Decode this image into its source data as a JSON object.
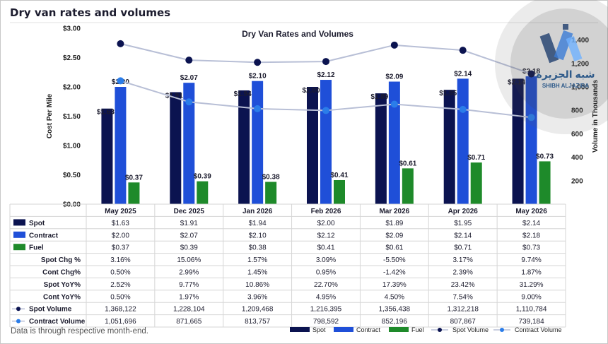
{
  "page": {
    "title": "Dry van rates and volumes",
    "footnote": "Data is through respective month-end."
  },
  "watermark": {
    "arabic": "شبه الجزيرة",
    "latin": "SHIBH ALJAZIRA"
  },
  "colors": {
    "spot": "#0b1350",
    "contract": "#1f4fd8",
    "fuel": "#1e8a2a",
    "spot_volume": "#0b1350",
    "contract_volume": "#2b7de9",
    "line": "#b8bfd6"
  },
  "chart_data": {
    "type": "bar",
    "title": "Dry Van Rates and Volumes",
    "ylabel": "Cost Per Mile",
    "y2label": "Volume in Thousands",
    "ylim": [
      0,
      3.0
    ],
    "y2lim": [
      0,
      1500
    ],
    "y_ticks": [
      "$0.00",
      "$0.50",
      "$1.00",
      "$1.50",
      "$2.00",
      "$2.50",
      "$3.00"
    ],
    "y2_ticks": [
      "200",
      "400",
      "600",
      "800",
      "1,000",
      "1,200",
      "1,400"
    ],
    "categories": [
      "May 2025",
      "Dec 2025",
      "Jan 2026",
      "Feb 2026",
      "Mar 2026",
      "Apr 2026",
      "May 2026"
    ],
    "series": [
      {
        "name": "Spot",
        "kind": "bar",
        "values": [
          1.63,
          1.91,
          1.94,
          2.0,
          1.89,
          1.95,
          2.14
        ],
        "labels": [
          "$1.63",
          "$1.91",
          "$1.94",
          "$2.00",
          "$1.89",
          "$1.95",
          "$2.14"
        ]
      },
      {
        "name": "Contract",
        "kind": "bar",
        "values": [
          2.0,
          2.07,
          2.1,
          2.12,
          2.09,
          2.14,
          2.18
        ],
        "labels": [
          "$2.00",
          "$2.07",
          "$2.10",
          "$2.12",
          "$2.09",
          "$2.14",
          "$2.18"
        ]
      },
      {
        "name": "Fuel",
        "kind": "bar",
        "values": [
          0.37,
          0.39,
          0.38,
          0.41,
          0.61,
          0.71,
          0.73
        ],
        "labels": [
          "$0.37",
          "$0.39",
          "$0.38",
          "$0.41",
          "$0.61",
          "$0.71",
          "$0.73"
        ]
      },
      {
        "name": "Spot Volume",
        "kind": "line",
        "axis": "y2",
        "values": [
          1368122,
          1228104,
          1209468,
          1216395,
          1356438,
          1312218,
          1110784
        ]
      },
      {
        "name": "Contract Volume",
        "kind": "line",
        "axis": "y2",
        "values": [
          1051696,
          871665,
          813757,
          798592,
          852196,
          807867,
          739184
        ]
      }
    ],
    "legend": "bottom-right",
    "table": {
      "rows": [
        {
          "label": "Spot",
          "marker": "spot",
          "values": [
            "$1.63",
            "$1.91",
            "$1.94",
            "$2.00",
            "$1.89",
            "$1.95",
            "$2.14"
          ]
        },
        {
          "label": "Contract",
          "marker": "contract",
          "values": [
            "$2.00",
            "$2.07",
            "$2.10",
            "$2.12",
            "$2.09",
            "$2.14",
            "$2.18"
          ]
        },
        {
          "label": "Fuel",
          "marker": "fuel",
          "values": [
            "$0.37",
            "$0.39",
            "$0.38",
            "$0.41",
            "$0.61",
            "$0.71",
            "$0.73"
          ]
        },
        {
          "label": "Spot Chg %",
          "marker": "",
          "values": [
            "3.16%",
            "15.06%",
            "1.57%",
            "3.09%",
            "-5.50%",
            "3.17%",
            "9.74%"
          ]
        },
        {
          "label": "Cont Chg%",
          "marker": "",
          "values": [
            "0.50%",
            "2.99%",
            "1.45%",
            "0.95%",
            "-1.42%",
            "2.39%",
            "1.87%"
          ]
        },
        {
          "label": "Spot YoY%",
          "marker": "",
          "values": [
            "2.52%",
            "9.77%",
            "10.86%",
            "22.70%",
            "17.39%",
            "23.42%",
            "31.29%"
          ]
        },
        {
          "label": "Cont YoY%",
          "marker": "",
          "values": [
            "0.50%",
            "1.97%",
            "3.96%",
            "4.95%",
            "4.50%",
            "7.54%",
            "9.00%"
          ]
        },
        {
          "label": "Spot Volume",
          "marker": "spot_volume",
          "values": [
            "1,368,122",
            "1,228,104",
            "1,209,468",
            "1,216,395",
            "1,356,438",
            "1,312,218",
            "1,110,784"
          ]
        },
        {
          "label": "Contract Volume",
          "marker": "contract_volume",
          "values": [
            "1,051,696",
            "871,665",
            "813,757",
            "798,592",
            "852,196",
            "807,867",
            "739,184"
          ]
        }
      ]
    }
  }
}
